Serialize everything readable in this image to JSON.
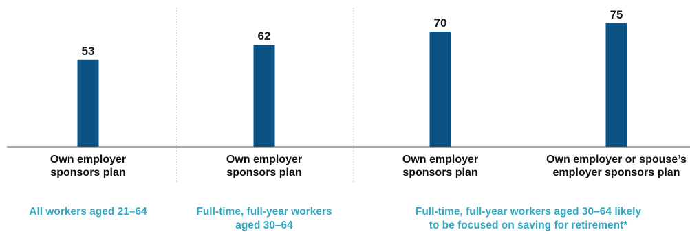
{
  "colors": {
    "bar": "#0b5384",
    "group_label": "#34a9c4",
    "axis": "#8c8c8c",
    "divider": "#c6c6c6"
  },
  "chart_data": {
    "type": "bar",
    "title": "",
    "xlabel": "",
    "ylabel": "",
    "ylim": [
      0,
      75
    ],
    "grid": false,
    "value_labels": true,
    "categories": [
      [
        "Own employer",
        "sponsors plan"
      ],
      [
        "Own employer",
        "sponsors plan"
      ],
      [
        "Own employer",
        "sponsors plan"
      ],
      [
        "Own employer or spouse’s",
        "employer sponsors plan"
      ]
    ],
    "values": [
      53,
      62,
      70,
      75
    ],
    "groups": [
      {
        "label": [
          "All workers aged 21–64"
        ],
        "category_indices": [
          0
        ]
      },
      {
        "label": [
          "Full-time, full-year workers",
          "aged 30–64"
        ],
        "category_indices": [
          1
        ]
      },
      {
        "label": [
          "Full-time, full-year workers aged 30–64 likely",
          "to be focused on saving for retirement*"
        ],
        "category_indices": [
          2,
          3
        ]
      }
    ]
  }
}
